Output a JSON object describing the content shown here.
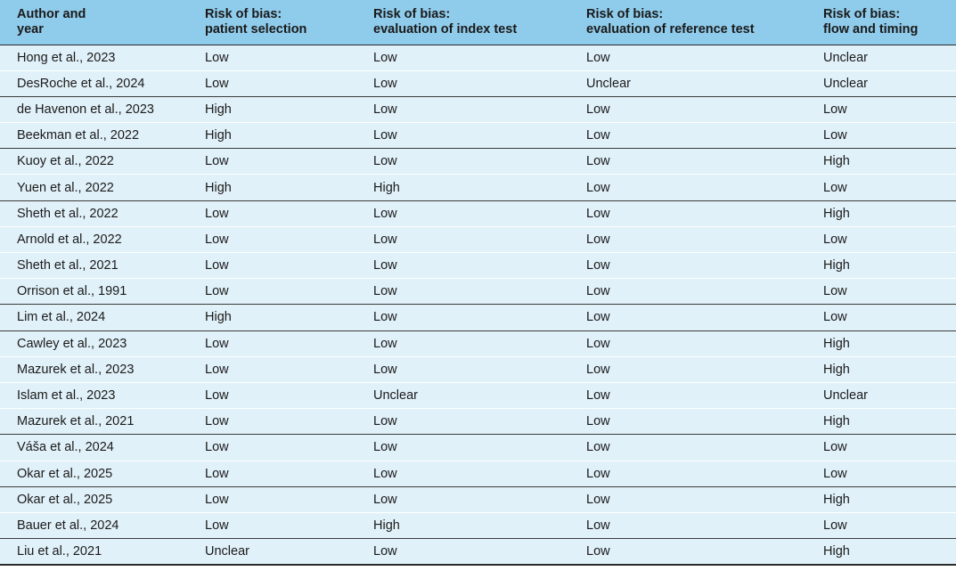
{
  "table": {
    "headers": [
      [
        "Author and",
        "year"
      ],
      [
        "Risk of bias:",
        "patient selection"
      ],
      [
        "Risk of bias:",
        "evaluation of index test"
      ],
      [
        "Risk of bias:",
        "evaluation of reference test"
      ],
      [
        "Risk of bias:",
        "flow and timing"
      ]
    ],
    "rows": [
      [
        "Hong et al., 2023",
        "Low",
        "Low",
        "Low",
        "Unclear"
      ],
      [
        "DesRoche et al., 2024",
        "Low",
        "Low",
        "Unclear",
        "Unclear"
      ],
      [
        "de Havenon et al., 2023",
        "High",
        "Low",
        "Low",
        "Low"
      ],
      [
        "Beekman et al., 2022",
        "High",
        "Low",
        "Low",
        "Low"
      ],
      [
        "Kuoy et al., 2022",
        "Low",
        "Low",
        "Low",
        "High"
      ],
      [
        "Yuen et al., 2022",
        "High",
        "High",
        "Low",
        "Low"
      ],
      [
        "Sheth et al., 2022",
        "Low",
        "Low",
        "Low",
        "High"
      ],
      [
        "Arnold et al., 2022",
        "Low",
        "Low",
        "Low",
        "Low"
      ],
      [
        "Sheth et al., 2021",
        "Low",
        "Low",
        "Low",
        "High"
      ],
      [
        "Orrison et al., 1991",
        "Low",
        "Low",
        "Low",
        "Low"
      ],
      [
        "Lim et al., 2024",
        "High",
        "Low",
        "Low",
        "Low"
      ],
      [
        "Cawley et al., 2023",
        "Low",
        "Low",
        "Low",
        "High"
      ],
      [
        "Mazurek et al., 2023",
        "Low",
        "Low",
        "Low",
        "High"
      ],
      [
        "Islam et al., 2023",
        "Low",
        "Unclear",
        "Low",
        "Unclear"
      ],
      [
        "Mazurek et al., 2021",
        "Low",
        "Low",
        "Low",
        "High"
      ],
      [
        "Váša et al., 2024",
        "Low",
        "Low",
        "Low",
        "Low"
      ],
      [
        "Okar et al., 2025",
        "Low",
        "Low",
        "Low",
        "Low"
      ],
      [
        "Okar et al., 2025",
        "Low",
        "Low",
        "Low",
        "High"
      ],
      [
        "Bauer et al., 2024",
        "Low",
        "High",
        "Low",
        "Low"
      ],
      [
        "Liu et al., 2021",
        "Unclear",
        "Low",
        "Low",
        "High"
      ]
    ],
    "separator_after_rows": [
      1,
      3,
      5,
      9,
      10,
      14,
      16,
      18
    ]
  },
  "colors": {
    "header_bg": "#8fcbea",
    "row_bg": "#e1f1f9",
    "rule": "#2a2a2a"
  }
}
